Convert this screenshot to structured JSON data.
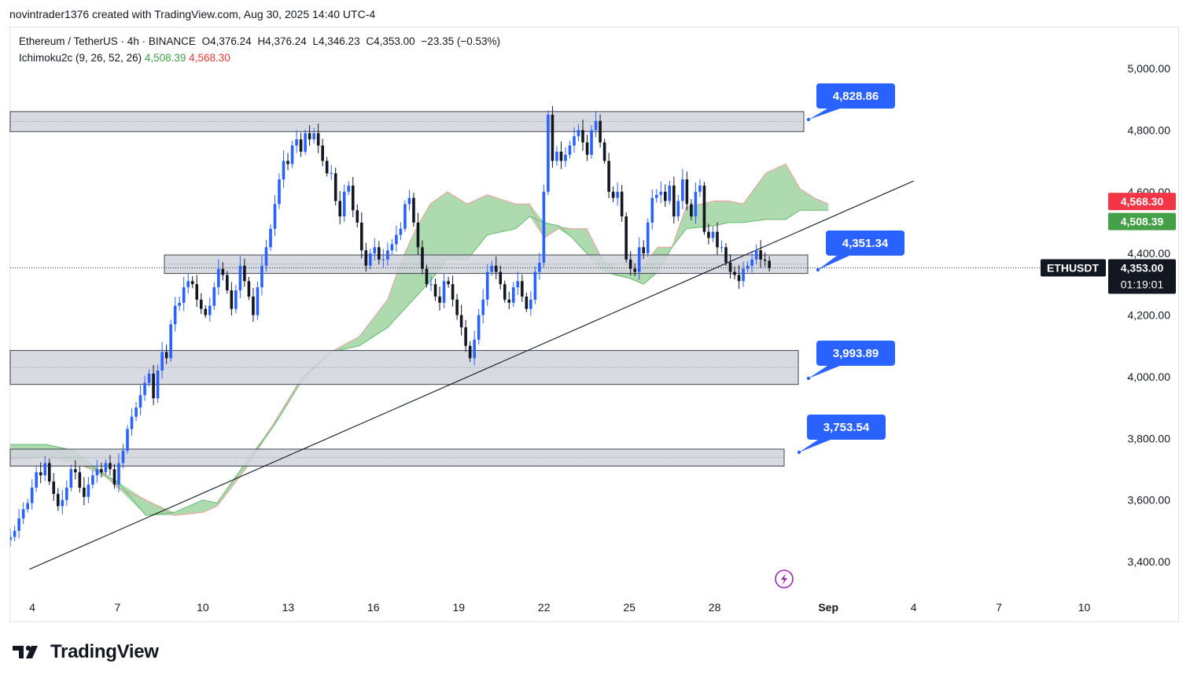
{
  "caption": "novintrader1376 created with TradingView.com, Aug 30, 2025 14:40 UTC-4",
  "legend": {
    "symbol": "Ethereum / TetherUS · 4h · BINANCE",
    "open": "O4,376.24",
    "high": "H4,376.24",
    "low": "L4,346.23",
    "close": "C4,353.00",
    "change": "−23.35 (−0.53%)",
    "indicator": "Ichimoku2c (9, 26, 52, 26)",
    "ind_value_1": "4,508.39",
    "ind_value_2": "4,568.30"
  },
  "brand": "TradingView",
  "colors": {
    "up": "#2962ff",
    "down": "#131722",
    "cloud": "#a5d6a7",
    "cloud_edge": "#ef9a9a",
    "zone_fill": "#d1d4dc",
    "callout": "#2962ff",
    "price_tag_bg": "#131722",
    "ind_green": "#43a047",
    "ind_red": "#f23645"
  },
  "chart_data": {
    "type": "candlestick",
    "symbol_tag": "ETHUSDT",
    "current_price": "4,353.00",
    "countdown": "01:19:01",
    "price_tag_green": "4,508.39",
    "price_tag_red": "4,568.30",
    "y_ticks": [
      "5,000.00",
      "4,800.00",
      "4,600.00",
      "4,400.00",
      "4,200.00",
      "4,000.00",
      "3,800.00",
      "3,600.00",
      "3,400.00"
    ],
    "x_ticks": [
      "4",
      "7",
      "10",
      "13",
      "16",
      "19",
      "22",
      "25",
      "28",
      "Sep",
      "4",
      "7",
      "10"
    ],
    "zones": [
      {
        "label": "4,828.86",
        "low": 4795,
        "high": 4860
      },
      {
        "label": "4,351.34",
        "low": 4335,
        "high": 4395
      },
      {
        "label": "3,993.89",
        "low": 3975,
        "high": 4085
      },
      {
        "label": "3,753.54",
        "low": 3710,
        "high": 3765
      }
    ],
    "trendline": {
      "from": {
        "day": 3.9,
        "price": 3375
      },
      "to": {
        "day": 35.0,
        "price": 4635
      }
    },
    "ohlc_note": "approximate 4h candles, Aug 3 – Aug 30 2025",
    "closes": [
      3470,
      3480,
      3500,
      3540,
      3570,
      3590,
      3640,
      3690,
      3680,
      3720,
      3660,
      3620,
      3580,
      3600,
      3640,
      3700,
      3690,
      3640,
      3610,
      3650,
      3680,
      3700,
      3690,
      3720,
      3700,
      3650,
      3720,
      3760,
      3830,
      3870,
      3900,
      3940,
      3980,
      4010,
      3930,
      4020,
      4080,
      4060,
      4170,
      4230,
      4240,
      4290,
      4310,
      4300,
      4250,
      4220,
      4200,
      4230,
      4290,
      4350,
      4330,
      4280,
      4220,
      4280,
      4360,
      4310,
      4260,
      4200,
      4290,
      4360,
      4420,
      4480,
      4560,
      4640,
      4700,
      4690,
      4750,
      4770,
      4730,
      4790,
      4770,
      4790,
      4750,
      4700,
      4660,
      4660,
      4570,
      4520,
      4600,
      4620,
      4540,
      4500,
      4410,
      4360,
      4400,
      4420,
      4380,
      4380,
      4410,
      4430,
      4460,
      4480,
      4560,
      4580,
      4500,
      4420,
      4350,
      4300,
      4300,
      4260,
      4240,
      4310,
      4300,
      4250,
      4200,
      4160,
      4100,
      4060,
      4120,
      4200,
      4250,
      4340,
      4360,
      4340,
      4300,
      4250,
      4240,
      4290,
      4310,
      4260,
      4220,
      4250,
      4340,
      4370,
      4600,
      4850,
      4700,
      4730,
      4700,
      4720,
      4750,
      4780,
      4800,
      4760,
      4720,
      4800,
      4830,
      4760,
      4700,
      4600,
      4580,
      4600,
      4520,
      4380,
      4350,
      4340,
      4420,
      4400,
      4500,
      4580,
      4590,
      4600,
      4570,
      4620,
      4520,
      4570,
      4640,
      4560,
      4520,
      4600,
      4620,
      4470,
      4450,
      4470,
      4420,
      4420,
      4370,
      4340,
      4330,
      4310,
      4350,
      4360,
      4380,
      4410,
      4380,
      4376,
      4353
    ],
    "cloud_note": "Ichimoku cloud approximated as upper/lower envelope series",
    "cloud_x": [
      3.0,
      4.5,
      5.5,
      6.5,
      7.0,
      8.0,
      9.0,
      10.0,
      10.5,
      11.5,
      12.5,
      13.5,
      14.5,
      15.5,
      16.5,
      17.0,
      17.5,
      18.0,
      18.6,
      19.3,
      20.0,
      21.0,
      21.5,
      22.0,
      22.5,
      23.0,
      23.5,
      24.0,
      24.5,
      25.0,
      25.5,
      26.0,
      26.5,
      27.0,
      28.0,
      28.5,
      29.0,
      29.8,
      30.5,
      31.0,
      31.5,
      32.0
    ],
    "cloud_a": [
      3730,
      3740,
      3720,
      3690,
      3640,
      3600,
      3550,
      3560,
      3580,
      3700,
      3850,
      4000,
      4080,
      4130,
      4250,
      4380,
      4480,
      4560,
      4600,
      4560,
      4590,
      4560,
      4560,
      4450,
      4480,
      4480,
      4480,
      4390,
      4350,
      4340,
      4360,
      4420,
      4420,
      4550,
      4570,
      4570,
      4560,
      4660,
      4690,
      4610,
      4580,
      4560
    ],
    "cloud_b": [
      3780,
      3780,
      3760,
      3680,
      3660,
      3550,
      3560,
      3600,
      3590,
      3720,
      3840,
      3990,
      4080,
      4100,
      4160,
      4210,
      4260,
      4310,
      4380,
      4380,
      4460,
      4480,
      4520,
      4500,
      4490,
      4450,
      4400,
      4350,
      4330,
      4320,
      4300,
      4340,
      4420,
      4480,
      4490,
      4500,
      4500,
      4510,
      4510,
      4540,
      4540,
      4540
    ]
  }
}
